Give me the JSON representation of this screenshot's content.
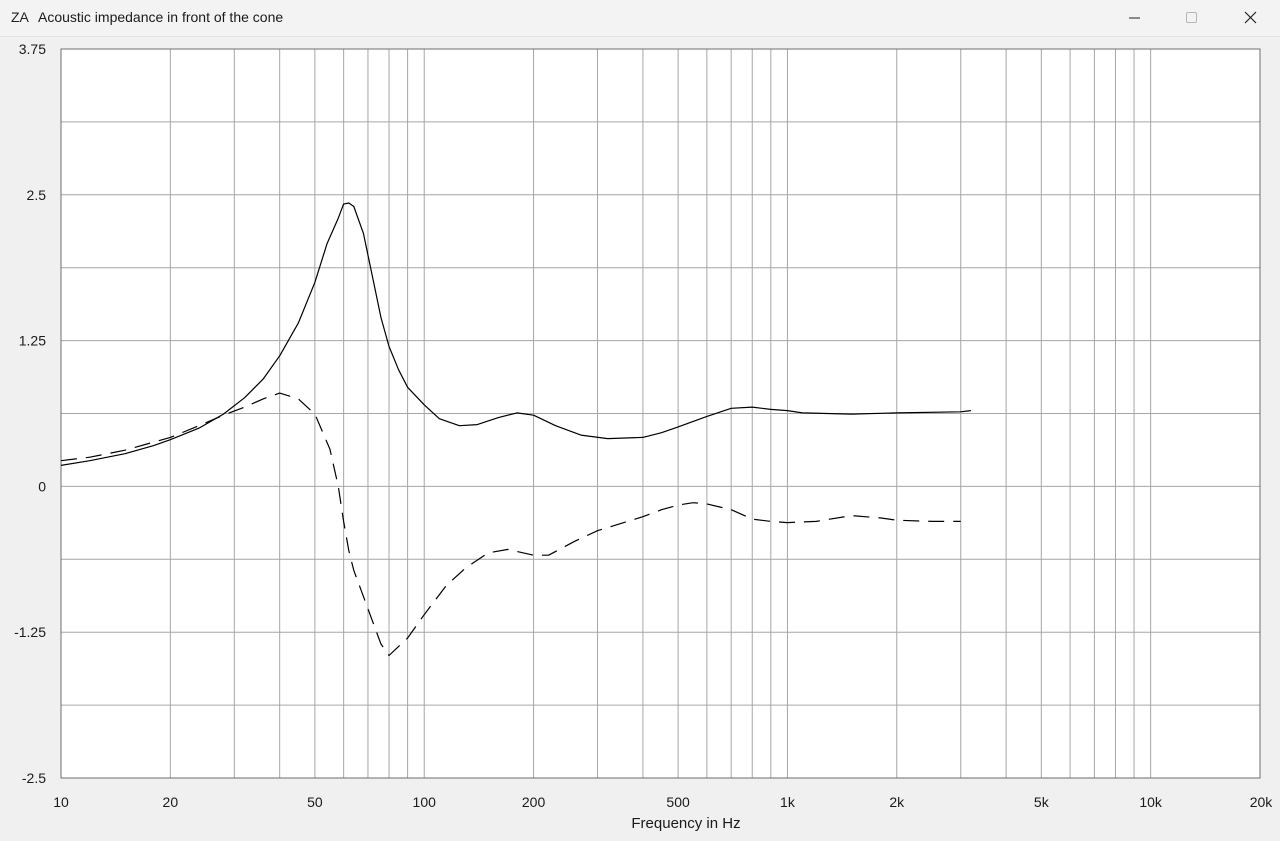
{
  "window": {
    "app_icon_text": "ZA",
    "title": "Acoustic impedance in front of the cone",
    "controls": {
      "minimize_icon": "minimize-icon",
      "maximize_icon": "maximize-icon",
      "close_icon": "close-icon"
    }
  },
  "chart_data": {
    "type": "line",
    "xscale": "log",
    "xlim": [
      10,
      20000
    ],
    "ylim": [
      -2.5,
      3.75
    ],
    "xlabel": "Frequency in Hz",
    "ylabel": "",
    "grid": true,
    "x_tick_labels": [
      {
        "value": 10,
        "label": "10"
      },
      {
        "value": 20,
        "label": "20"
      },
      {
        "value": 50,
        "label": "50"
      },
      {
        "value": 100,
        "label": "100"
      },
      {
        "value": 200,
        "label": "200"
      },
      {
        "value": 500,
        "label": "500"
      },
      {
        "value": 1000,
        "label": "1k"
      },
      {
        "value": 2000,
        "label": "2k"
      },
      {
        "value": 5000,
        "label": "5k"
      },
      {
        "value": 10000,
        "label": "10k"
      },
      {
        "value": 20000,
        "label": "20k"
      }
    ],
    "x_minor_gridlines": [
      30,
      40,
      60,
      70,
      80,
      90,
      300,
      400,
      600,
      700,
      800,
      900,
      3000,
      4000,
      6000,
      7000,
      8000,
      9000
    ],
    "y_tick_labels": [
      {
        "value": 3.75,
        "label": "3.75"
      },
      {
        "value": 2.5,
        "label": "2.5"
      },
      {
        "value": 1.25,
        "label": "1.25"
      },
      {
        "value": 0,
        "label": "0"
      },
      {
        "value": -1.25,
        "label": "-1.25"
      },
      {
        "value": -2.5,
        "label": "-2.5"
      }
    ],
    "y_gridlines": [
      3.75,
      3.125,
      2.5,
      1.875,
      1.25,
      0.625,
      0,
      -0.625,
      -1.25,
      -1.875,
      -2.5
    ],
    "series": [
      {
        "style": "solid",
        "color": "#000000",
        "points": [
          [
            10,
            0.18
          ],
          [
            12,
            0.22
          ],
          [
            15,
            0.28
          ],
          [
            18,
            0.35
          ],
          [
            20,
            0.4
          ],
          [
            24,
            0.5
          ],
          [
            28,
            0.62
          ],
          [
            32,
            0.76
          ],
          [
            36,
            0.92
          ],
          [
            40,
            1.12
          ],
          [
            45,
            1.4
          ],
          [
            50,
            1.75
          ],
          [
            54,
            2.08
          ],
          [
            58,
            2.3
          ],
          [
            60,
            2.42
          ],
          [
            62,
            2.43
          ],
          [
            64,
            2.4
          ],
          [
            68,
            2.17
          ],
          [
            72,
            1.8
          ],
          [
            76,
            1.45
          ],
          [
            80,
            1.2
          ],
          [
            85,
            1.0
          ],
          [
            90,
            0.85
          ],
          [
            100,
            0.7
          ],
          [
            110,
            0.58
          ],
          [
            125,
            0.52
          ],
          [
            140,
            0.53
          ],
          [
            160,
            0.59
          ],
          [
            180,
            0.63
          ],
          [
            200,
            0.61
          ],
          [
            230,
            0.52
          ],
          [
            270,
            0.44
          ],
          [
            320,
            0.41
          ],
          [
            400,
            0.42
          ],
          [
            450,
            0.46
          ],
          [
            500,
            0.51
          ],
          [
            600,
            0.6
          ],
          [
            700,
            0.67
          ],
          [
            800,
            0.68
          ],
          [
            900,
            0.66
          ],
          [
            1000,
            0.65
          ],
          [
            1100,
            0.63
          ],
          [
            1500,
            0.62
          ],
          [
            2000,
            0.63
          ],
          [
            3000,
            0.64
          ],
          [
            3200,
            0.65
          ]
        ]
      },
      {
        "style": "dashed",
        "color": "#000000",
        "points": [
          [
            10,
            0.22
          ],
          [
            12,
            0.25
          ],
          [
            15,
            0.31
          ],
          [
            18,
            0.38
          ],
          [
            20,
            0.42
          ],
          [
            24,
            0.52
          ],
          [
            28,
            0.61
          ],
          [
            32,
            0.68
          ],
          [
            36,
            0.75
          ],
          [
            40,
            0.8
          ],
          [
            45,
            0.75
          ],
          [
            50,
            0.62
          ],
          [
            55,
            0.32
          ],
          [
            58,
            0.0
          ],
          [
            60,
            -0.3
          ],
          [
            62,
            -0.55
          ],
          [
            64,
            -0.72
          ],
          [
            70,
            -1.05
          ],
          [
            76,
            -1.35
          ],
          [
            80,
            -1.45
          ],
          [
            90,
            -1.3
          ],
          [
            100,
            -1.1
          ],
          [
            115,
            -0.85
          ],
          [
            130,
            -0.7
          ],
          [
            150,
            -0.57
          ],
          [
            170,
            -0.54
          ],
          [
            200,
            -0.59
          ],
          [
            220,
            -0.59
          ],
          [
            260,
            -0.47
          ],
          [
            300,
            -0.38
          ],
          [
            400,
            -0.26
          ],
          [
            450,
            -0.2
          ],
          [
            500,
            -0.16
          ],
          [
            550,
            -0.14
          ],
          [
            600,
            -0.15
          ],
          [
            700,
            -0.2
          ],
          [
            800,
            -0.28
          ],
          [
            900,
            -0.3
          ],
          [
            1000,
            -0.31
          ],
          [
            1200,
            -0.3
          ],
          [
            1500,
            -0.25
          ],
          [
            1800,
            -0.27
          ],
          [
            2000,
            -0.29
          ],
          [
            2500,
            -0.3
          ],
          [
            3000,
            -0.3
          ]
        ]
      }
    ]
  }
}
